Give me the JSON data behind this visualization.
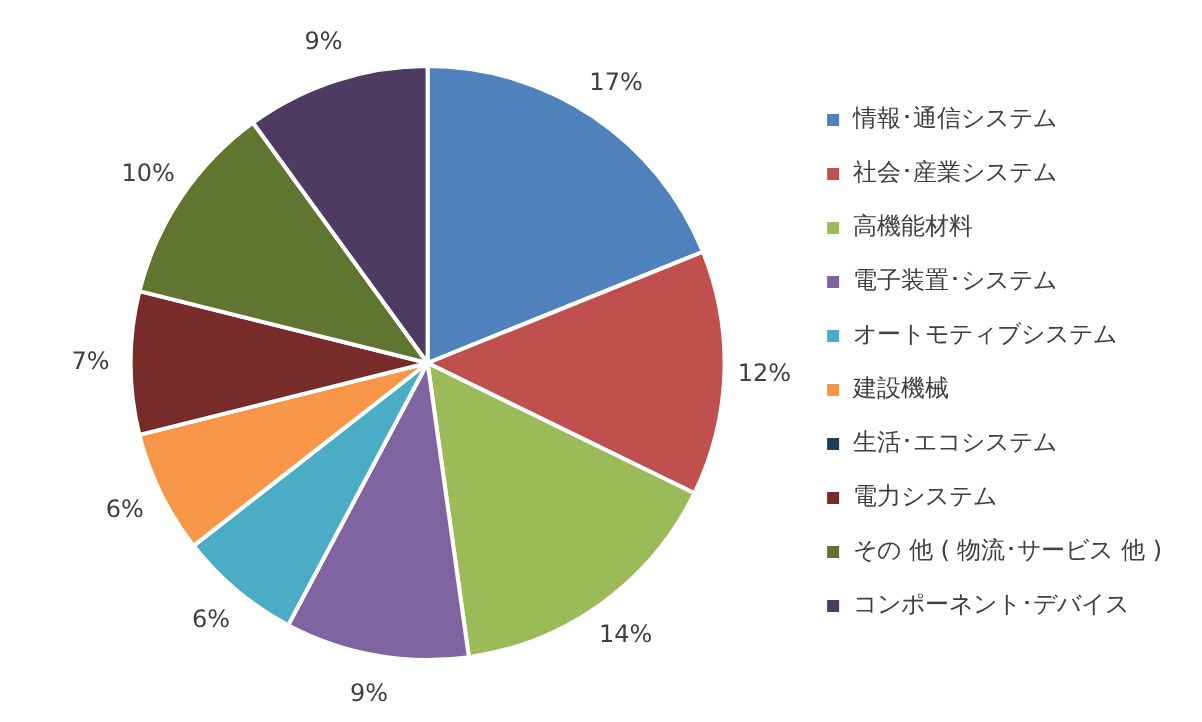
{
  "chart_data": {
    "type": "pie",
    "categories": [
      "情報･通信システム",
      "社会･産業システム",
      "高機能材料",
      "電子装置･システム",
      "オートモティブシステム",
      "建設機械",
      "生活･エコシステム",
      "電力システム",
      "その 他 ( 物流･サービス 他 )",
      "コンポーネント･デバイス"
    ],
    "values": [
      17,
      12,
      14,
      9,
      6,
      6,
      null,
      7,
      10,
      9
    ],
    "value_labels": [
      "17%",
      "12%",
      "14%",
      "9%",
      "6%",
      "6%",
      null,
      "7%",
      "10%",
      "9%"
    ],
    "colors": [
      "#4f81bd",
      "#c0504d",
      "#9bbb59",
      "#8064a2",
      "#4bacc6",
      "#f79646",
      "#1f3f5f",
      "#772c2a",
      "#5f7530",
      "#4d3b62"
    ],
    "legend": "right"
  }
}
